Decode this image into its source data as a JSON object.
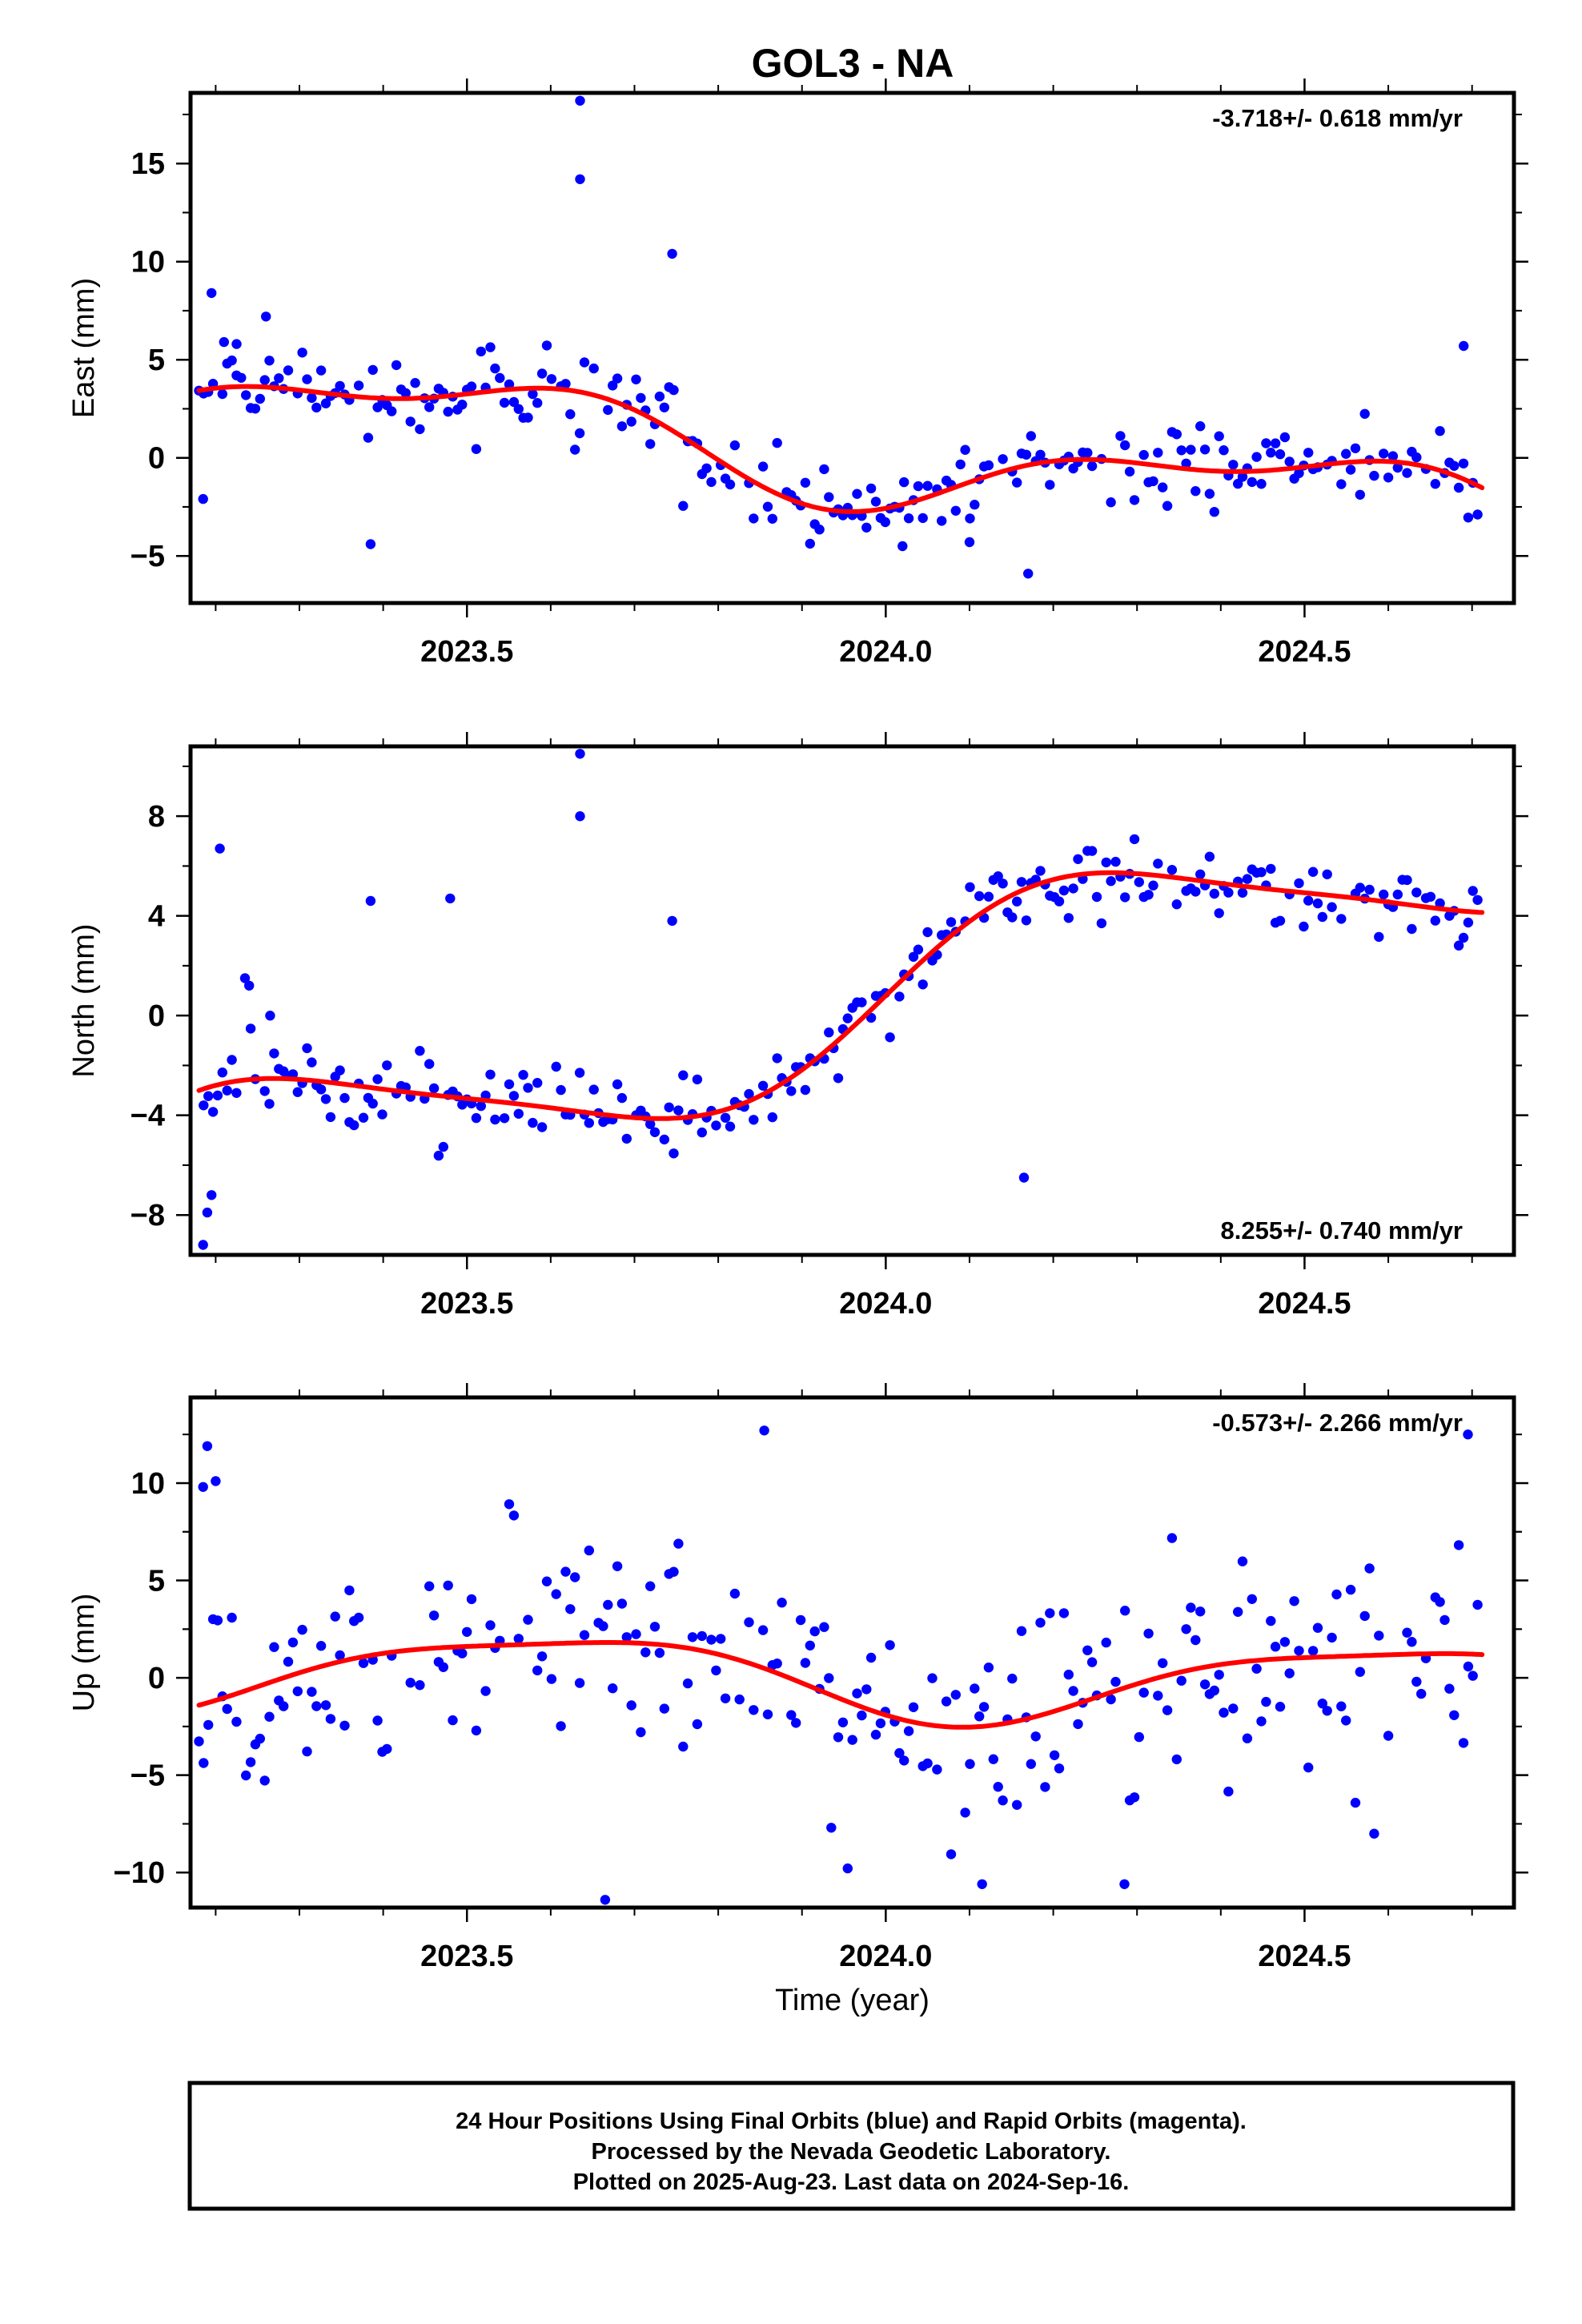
{
  "title": "GOL3 - NA",
  "footer": {
    "line1": "24 Hour Positions Using Final Orbits (blue) and Rapid Orbits (magenta).",
    "line2": "Processed by the Nevada Geodetic Laboratory.",
    "line3": "Plotted on 2025-Aug-23. Last data on 2024-Sep-16."
  },
  "colors": {
    "points": "#0000ff",
    "fit": "#ff0000",
    "axes": "#000000"
  },
  "chart_data": [
    {
      "type": "scatter",
      "ylabel": "East (mm)",
      "xlabel": "",
      "rate_label": "-3.718+/- 0.618 mm/yr",
      "rate_position": "top-right",
      "xlim": [
        2023.17,
        2024.75
      ],
      "ylim": [
        -7.4,
        18.6
      ],
      "xticks": [
        2023.5,
        2024.0,
        2024.5
      ],
      "xtick_labels": [
        "2023.5",
        "2024.0",
        "2024.5"
      ],
      "yticks": [
        -5,
        0,
        5,
        10,
        15
      ],
      "ytick_labels": [
        "−5",
        "0",
        "5",
        "10",
        "15"
      ],
      "grid": false,
      "model": {
        "series": "model fit",
        "offset": 0.0,
        "rate": -3.718,
        "annual_amp": 2.0,
        "annual_phase": 0.23,
        "semi_amp": 1.0,
        "semi_phase": 0.55,
        "ref": 2024.0
      },
      "noise_sd": 1.0,
      "outliers": [
        [
          2023.185,
          -2.1
        ],
        [
          2023.195,
          8.4
        ],
        [
          2023.21,
          5.9
        ],
        [
          2023.225,
          5.8
        ],
        [
          2023.26,
          7.2
        ],
        [
          2023.385,
          -4.4
        ],
        [
          2023.635,
          18.2
        ],
        [
          2023.635,
          14.2
        ],
        [
          2023.745,
          10.4
        ],
        [
          2024.02,
          -4.5
        ],
        [
          2024.1,
          -4.3
        ],
        [
          2024.17,
          -5.9
        ],
        [
          2024.69,
          5.7
        ]
      ]
    },
    {
      "type": "scatter",
      "ylabel": "North (mm)",
      "xlabel": "",
      "rate_label": "8.255+/- 0.740 mm/yr",
      "rate_position": "bottom-right",
      "xlim": [
        2023.17,
        2024.75
      ],
      "ylim": [
        -9.6,
        10.8
      ],
      "xticks": [
        2023.5,
        2024.0,
        2024.5
      ],
      "xtick_labels": [
        "2023.5",
        "2024.0",
        "2024.5"
      ],
      "yticks": [
        -8,
        -4,
        0,
        4,
        8
      ],
      "ytick_labels": [
        "−8",
        "−4",
        "0",
        "4",
        "8"
      ],
      "grid": false,
      "model": {
        "series": "model fit",
        "offset": 0.8,
        "rate": 8.255,
        "annual_amp": 2.85,
        "annual_phase": 0.0,
        "semi_amp": 0.5,
        "semi_phase": 0.5,
        "ref": 2024.0
      },
      "noise_sd": 0.8,
      "outliers": [
        [
          2023.185,
          -9.2
        ],
        [
          2023.19,
          -7.9
        ],
        [
          2023.195,
          -7.2
        ],
        [
          2023.205,
          6.7
        ],
        [
          2023.235,
          1.5
        ],
        [
          2023.24,
          1.2
        ],
        [
          2023.265,
          0.0
        ],
        [
          2023.385,
          4.6
        ],
        [
          2023.48,
          4.7
        ],
        [
          2023.635,
          10.5
        ],
        [
          2023.635,
          8.0
        ],
        [
          2023.745,
          3.8
        ],
        [
          2024.165,
          -6.5
        ]
      ]
    },
    {
      "type": "scatter",
      "ylabel": "Up (mm)",
      "xlabel": "Time (year)",
      "rate_label": "-0.573+/- 2.266 mm/yr",
      "rate_position": "top-right",
      "xlim": [
        2023.17,
        2024.75
      ],
      "ylim": [
        -11.8,
        14.4
      ],
      "xticks": [
        2023.5,
        2024.0,
        2024.5
      ],
      "xtick_labels": [
        "2023.5",
        "2024.0",
        "2024.5"
      ],
      "yticks": [
        -10,
        -5,
        0,
        5,
        10
      ],
      "ytick_labels": [
        "−10",
        "−5",
        "0",
        "5",
        "10"
      ],
      "grid": false,
      "model": {
        "series": "model fit",
        "offset": 0.0,
        "rate": -0.573,
        "annual_amp": 2.0,
        "annual_phase": 0.35,
        "semi_amp": 0.5,
        "semi_phase": 0.2,
        "ref": 2024.0
      },
      "noise_sd": 3.0,
      "outliers": [
        [
          2023.19,
          11.9
        ],
        [
          2023.2,
          10.1
        ],
        [
          2023.185,
          9.8
        ],
        [
          2023.665,
          -11.4
        ],
        [
          2023.855,
          12.7
        ],
        [
          2023.935,
          -7.7
        ],
        [
          2024.115,
          -10.6
        ],
        [
          2024.285,
          -10.6
        ],
        [
          2024.695,
          12.5
        ]
      ]
    }
  ]
}
